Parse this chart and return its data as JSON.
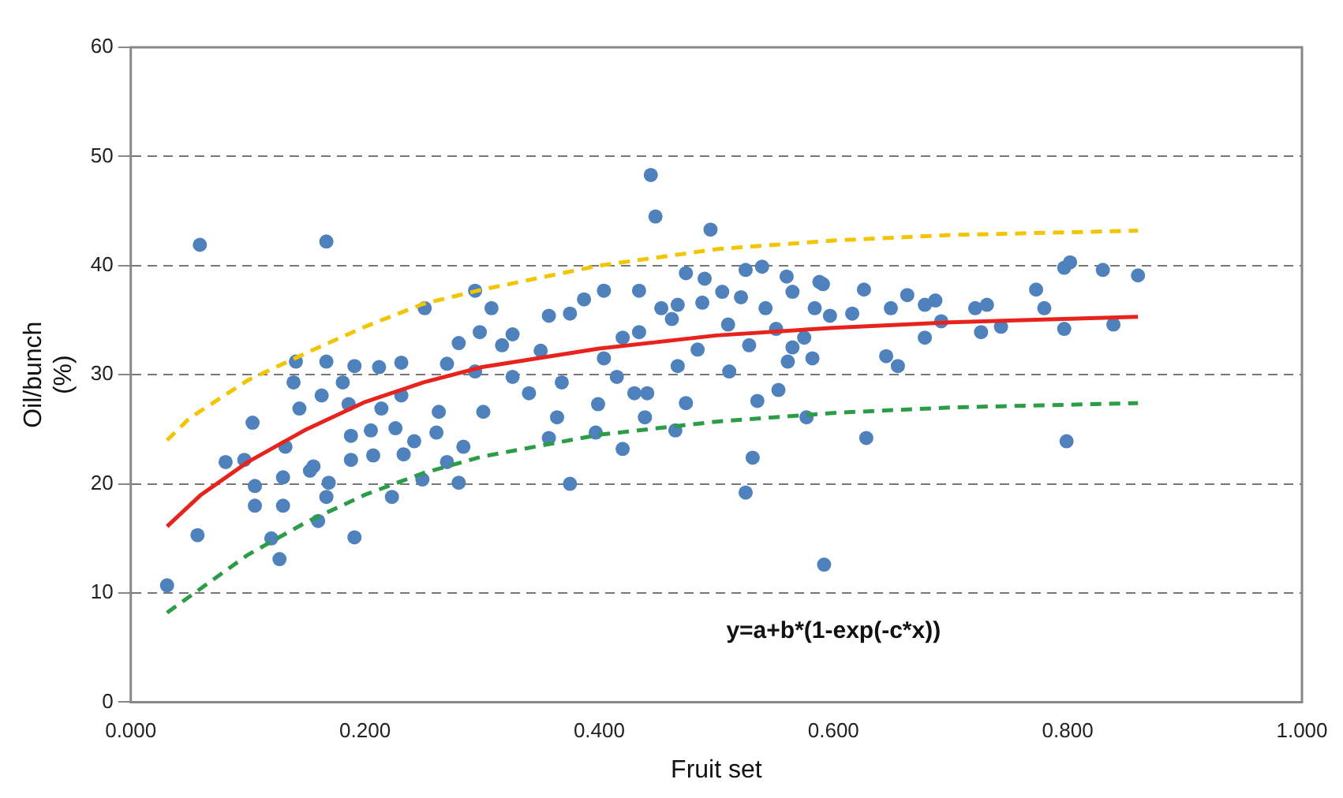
{
  "chart_data": {
    "type": "scatter",
    "xlabel": "Fruit set",
    "ylabel": "Oil/bunch (%)",
    "xlim": [
      0,
      1
    ],
    "ylim": [
      0,
      60
    ],
    "xticks": [
      {
        "value": 0,
        "label": "0.000"
      },
      {
        "value": 0.2,
        "label": "0.200"
      },
      {
        "value": 0.4,
        "label": "0.400"
      },
      {
        "value": 0.6,
        "label": "0.600"
      },
      {
        "value": 0.8,
        "label": "0.800"
      },
      {
        "value": 1,
        "label": "1.000"
      }
    ],
    "yticks": [
      0,
      10,
      20,
      30,
      40,
      50,
      60
    ],
    "grid": "y",
    "legend": false,
    "annotations": [
      "y=a+b*(1-exp(-c*x))"
    ],
    "series": [
      {
        "type": "scatter",
        "color": "#4f81bd",
        "marker": "circle",
        "x": [
          0.059,
          0.167,
          0.031,
          0.057,
          0.127,
          0.12,
          0.191,
          0.106,
          0.13,
          0.16,
          0.106,
          0.13,
          0.153,
          0.169,
          0.167,
          0.223,
          0.249,
          0.28,
          0.27,
          0.284,
          0.081,
          0.097,
          0.104,
          0.132,
          0.156,
          0.188,
          0.207,
          0.233,
          0.188,
          0.205,
          0.226,
          0.242,
          0.261,
          0.144,
          0.163,
          0.186,
          0.214,
          0.231,
          0.263,
          0.139,
          0.141,
          0.167,
          0.191,
          0.212,
          0.231,
          0.181,
          0.251,
          0.27,
          0.28,
          0.294,
          0.308,
          0.298,
          0.301,
          0.317,
          0.294,
          0.326,
          0.444,
          0.448,
          0.495,
          0.375,
          0.525,
          0.531,
          0.592,
          0.628,
          0.577,
          0.357,
          0.397,
          0.42,
          0.465,
          0.439,
          0.364,
          0.399,
          0.43,
          0.474,
          0.535,
          0.553,
          0.34,
          0.368,
          0.415,
          0.441,
          0.511,
          0.561,
          0.582,
          0.645,
          0.655,
          0.35,
          0.404,
          0.467,
          0.484,
          0.528,
          0.565,
          0.326,
          0.42,
          0.434,
          0.462,
          0.51,
          0.551,
          0.575,
          0.597,
          0.616,
          0.649,
          0.357,
          0.375,
          0.387,
          0.404,
          0.434,
          0.453,
          0.467,
          0.488,
          0.505,
          0.521,
          0.542,
          0.565,
          0.584,
          0.591,
          0.626,
          0.663,
          0.474,
          0.49,
          0.525,
          0.539,
          0.56,
          0.588,
          0.678,
          0.687,
          0.692,
          0.678,
          0.726,
          0.721,
          0.731,
          0.743,
          0.773,
          0.78,
          0.797,
          0.797,
          0.802,
          0.83,
          0.839,
          0.86,
          0.799
        ],
        "values": [
          41.9,
          42.2,
          10.7,
          15.3,
          13.1,
          15.0,
          15.1,
          18.0,
          18.0,
          16.6,
          19.8,
          20.6,
          21.2,
          20.1,
          18.8,
          18.8,
          20.4,
          20.1,
          22.0,
          23.4,
          22.0,
          22.2,
          25.6,
          23.4,
          21.6,
          22.2,
          22.6,
          22.7,
          24.4,
          24.9,
          25.1,
          23.9,
          24.7,
          26.9,
          28.1,
          27.3,
          26.9,
          28.1,
          26.6,
          29.3,
          31.2,
          31.2,
          30.8,
          30.7,
          31.1,
          29.3,
          36.1,
          31.0,
          32.9,
          37.7,
          36.1,
          33.9,
          26.6,
          32.7,
          30.3,
          29.8,
          48.3,
          44.5,
          43.3,
          20.0,
          19.2,
          22.4,
          12.6,
          24.2,
          26.1,
          24.2,
          24.7,
          23.2,
          24.9,
          26.1,
          26.1,
          27.3,
          28.3,
          27.4,
          27.6,
          28.6,
          28.3,
          29.3,
          29.8,
          28.3,
          30.3,
          31.2,
          31.5,
          31.7,
          30.8,
          32.2,
          31.5,
          30.8,
          32.3,
          32.7,
          32.5,
          33.7,
          33.4,
          33.9,
          35.1,
          34.6,
          34.2,
          33.4,
          35.4,
          35.6,
          36.1,
          35.4,
          35.6,
          36.9,
          37.7,
          37.7,
          36.1,
          36.4,
          36.6,
          37.6,
          37.1,
          36.1,
          37.6,
          36.1,
          38.3,
          37.8,
          37.3,
          39.3,
          38.8,
          39.6,
          39.9,
          39.0,
          38.5,
          36.4,
          36.8,
          34.9,
          33.4,
          33.9,
          36.1,
          36.4,
          34.4,
          37.8,
          36.1,
          34.2,
          39.8,
          40.3,
          39.6,
          34.6,
          39.1,
          23.9
        ]
      },
      {
        "type": "line",
        "color": "#e8231d",
        "line_style": "solid",
        "marker": "none",
        "x": [
          0.031,
          0.06,
          0.1,
          0.15,
          0.2,
          0.25,
          0.3,
          0.4,
          0.5,
          0.6,
          0.7,
          0.86
        ],
        "values": [
          16.1,
          19,
          22,
          25,
          27.5,
          29.3,
          30.7,
          32.4,
          33.6,
          34.3,
          34.8,
          35.3
        ]
      },
      {
        "type": "line",
        "color": "#f2c500",
        "line_style": "dashed",
        "marker": "none",
        "x": [
          0.031,
          0.05,
          0.1,
          0.15,
          0.2,
          0.25,
          0.3,
          0.4,
          0.5,
          0.6,
          0.7,
          0.86
        ],
        "values": [
          24,
          26,
          29.5,
          32,
          34.4,
          36.5,
          37.8,
          40,
          41.5,
          42.3,
          42.8,
          43.2
        ]
      },
      {
        "type": "line",
        "color": "#2a9d46",
        "line_style": "dashed",
        "marker": "none",
        "x": [
          0.031,
          0.1,
          0.15,
          0.2,
          0.25,
          0.3,
          0.4,
          0.5,
          0.6,
          0.7,
          0.86
        ],
        "values": [
          8.2,
          13.5,
          16.5,
          19,
          21,
          22.5,
          24.5,
          25.7,
          26.5,
          27,
          27.4
        ]
      }
    ]
  }
}
